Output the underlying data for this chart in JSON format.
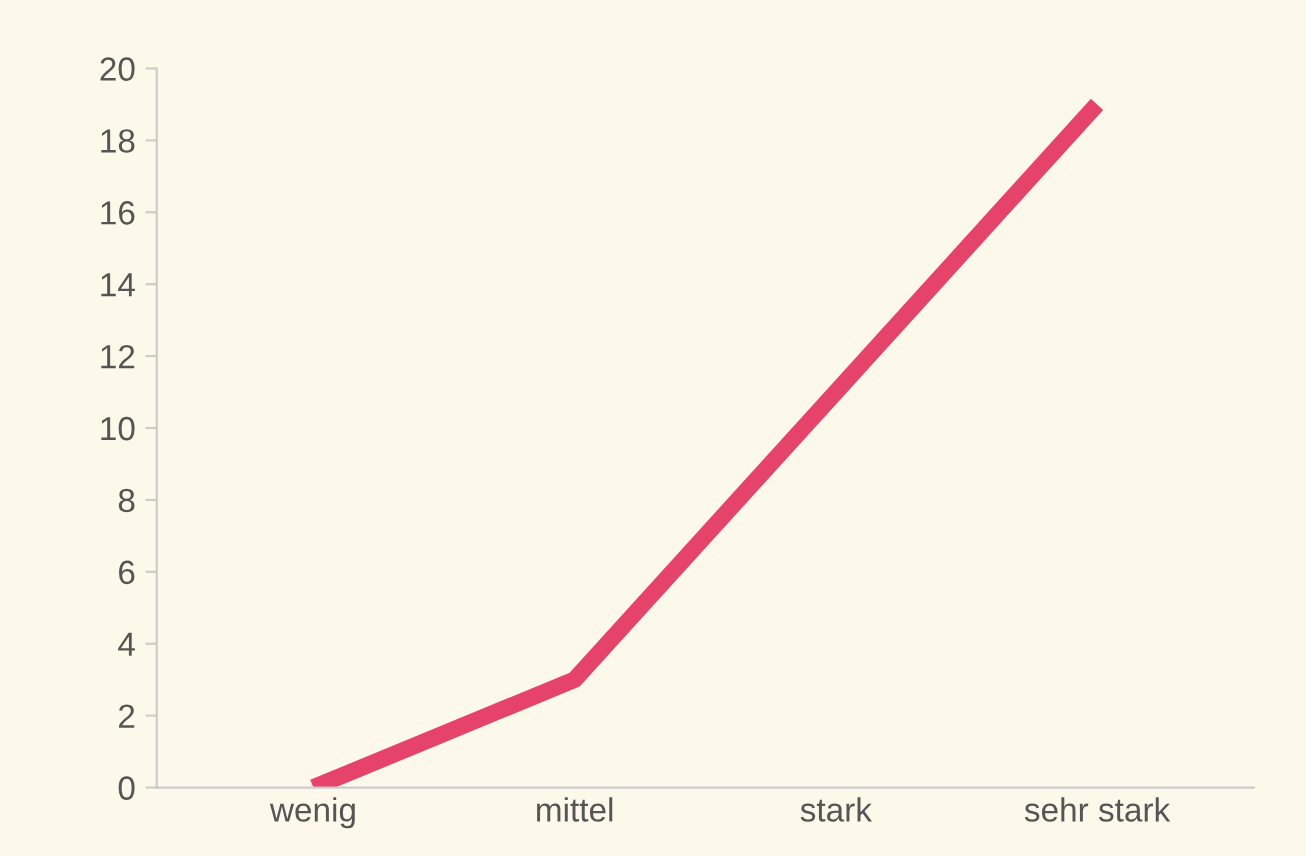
{
  "chart_data": {
    "type": "line",
    "categories": [
      "wenig",
      "mittel",
      "stark",
      "sehr stark"
    ],
    "series": [
      {
        "color": "#e5436a",
        "values": [
          0,
          3,
          11,
          19
        ]
      }
    ],
    "ylim": [
      0,
      20
    ],
    "yticks": [
      0,
      2,
      4,
      6,
      8,
      10,
      12,
      14,
      16,
      18,
      20
    ],
    "grid": false,
    "marker": "none",
    "line_style": "solid"
  }
}
